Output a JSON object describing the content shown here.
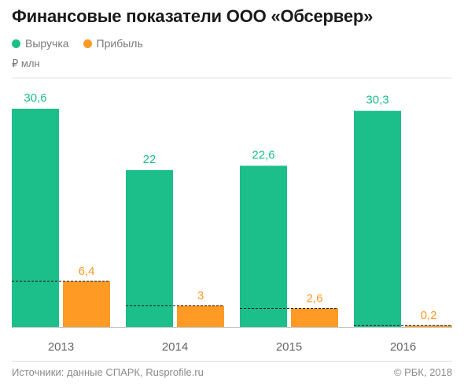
{
  "title": "Финансовые показатели ООО «Обсервер»",
  "unit_label": "₽ млн",
  "source": "Источники: данные СПАРК, Rusprofile.ru",
  "copyright": "© РБК, 2018",
  "colors": {
    "revenue": "#1cbf8a",
    "profit": "#ff9a24",
    "text": "#1a1a1a",
    "muted": "#7a7a7a"
  },
  "chart_data": {
    "type": "bar",
    "categories": [
      "2013",
      "2014",
      "2015",
      "2016"
    ],
    "series": [
      {
        "name": "Выручка",
        "values": [
          30.6,
          22,
          22.6,
          30.3
        ],
        "labels": [
          "30,6",
          "22",
          "22,6",
          "30,3"
        ]
      },
      {
        "name": "Прибыль",
        "values": [
          6.4,
          3,
          2.6,
          0.2
        ],
        "labels": [
          "6,4",
          "3",
          "2,6",
          "0,2"
        ]
      }
    ],
    "ylim": [
      0,
      30.6
    ],
    "grid": false,
    "legend_position": "top-left",
    "profit_marker": "dashed line across bars at profit level"
  }
}
